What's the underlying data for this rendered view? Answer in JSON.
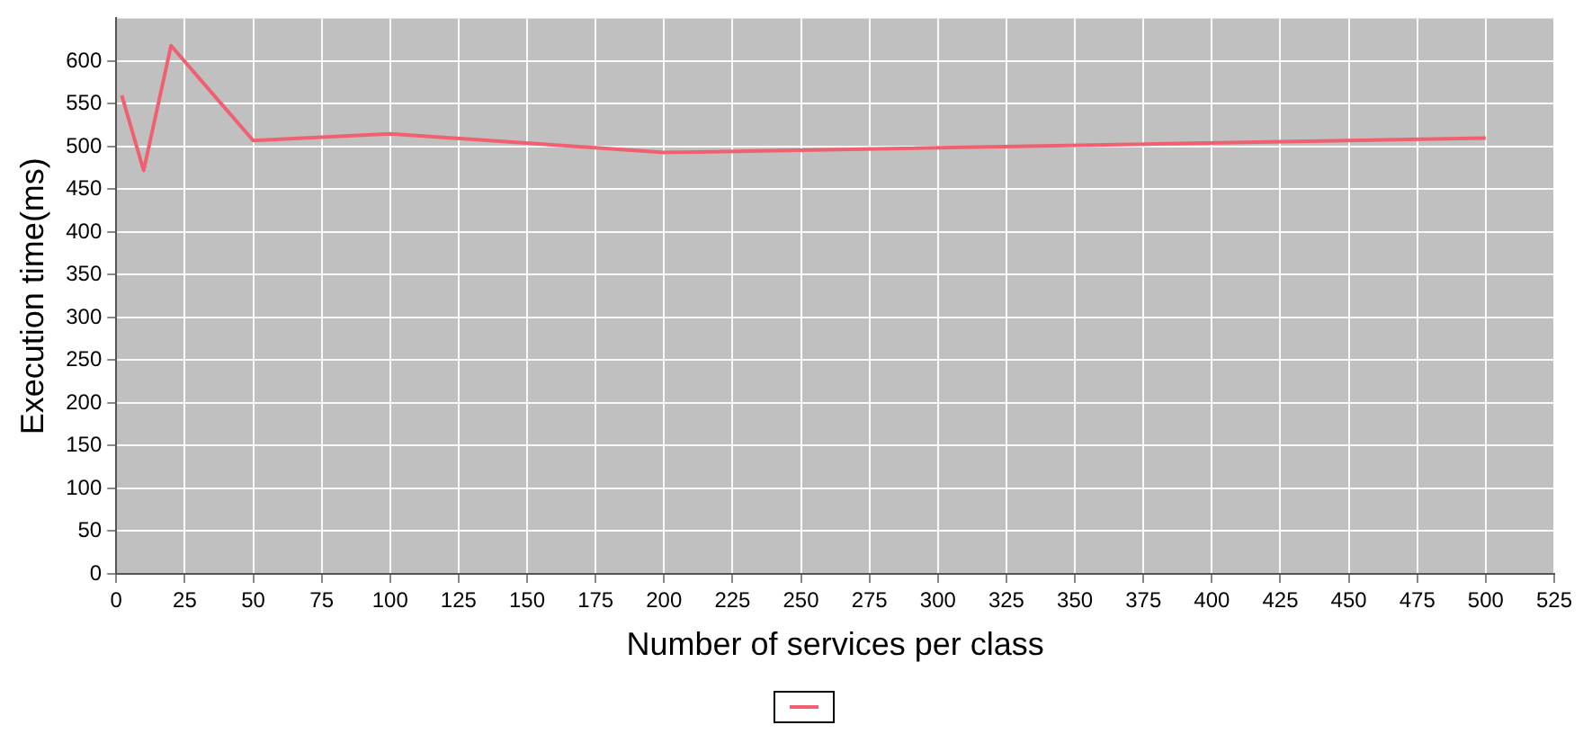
{
  "chart_data": {
    "type": "line",
    "xlabel": "Number of services per class",
    "ylabel": "Execution time(ms)",
    "x": [
      2,
      10,
      20,
      50,
      100,
      200,
      500
    ],
    "series": [
      {
        "color": "#f06070",
        "values": [
          560,
          472,
          618,
          507,
          515,
          493,
          510
        ]
      }
    ],
    "xlim": [
      0,
      525
    ],
    "xticks": [
      0,
      25,
      50,
      75,
      100,
      125,
      150,
      175,
      200,
      225,
      250,
      275,
      300,
      325,
      350,
      375,
      400,
      425,
      450,
      475,
      500,
      525
    ],
    "ylim": [
      0,
      650
    ],
    "yticks": [
      0,
      50,
      100,
      150,
      200,
      250,
      300,
      350,
      400,
      450,
      500,
      550,
      600
    ],
    "grid": true,
    "marker": "none",
    "line_style": "solid"
  }
}
